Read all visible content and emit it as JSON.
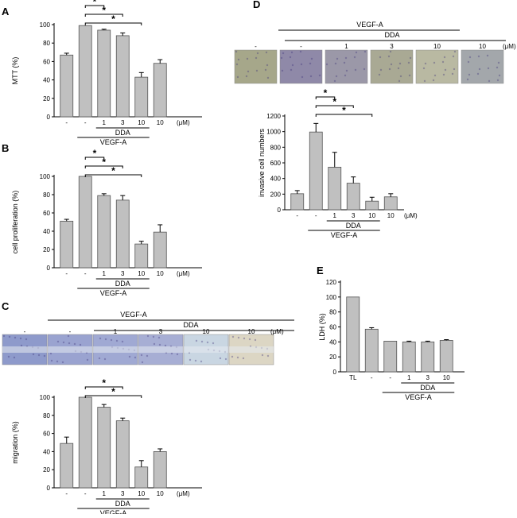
{
  "chart_data": [
    {
      "id": "A",
      "panel_label": "A",
      "type": "bar",
      "categories": [
        "-",
        "-",
        "1",
        "3",
        "10",
        "10"
      ],
      "unit": "(μM)",
      "values": [
        67,
        99,
        94,
        88,
        43,
        58
      ],
      "errors": [
        2,
        0,
        1,
        3,
        5,
        4
      ],
      "ylabel": "MTT (%)",
      "ylim": [
        0,
        100
      ],
      "yticks": [
        0,
        20,
        40,
        60,
        80,
        100
      ],
      "groups": [
        {
          "label": "DDA",
          "from": 2,
          "to": 4
        },
        {
          "label": "VEGF-A",
          "from": 1,
          "to": 4
        }
      ],
      "significance": [
        {
          "from": 1,
          "to": 2,
          "label": "*"
        },
        {
          "from": 1,
          "to": 3,
          "label": "*"
        },
        {
          "from": 1,
          "to": 4,
          "label": "*"
        }
      ]
    },
    {
      "id": "B",
      "panel_label": "B",
      "type": "bar",
      "categories": [
        "-",
        "-",
        "1",
        "3",
        "10",
        "10"
      ],
      "unit": "(μM)",
      "values": [
        51,
        100,
        79,
        74,
        26,
        39
      ],
      "errors": [
        2,
        0,
        2,
        5,
        3,
        8
      ],
      "ylabel": "cell proliferation (%)",
      "ylim": [
        0,
        100
      ],
      "yticks": [
        0,
        20,
        40,
        60,
        80,
        100
      ],
      "groups": [
        {
          "label": "DDA",
          "from": 2,
          "to": 4
        },
        {
          "label": "VEGF-A",
          "from": 1,
          "to": 4
        }
      ],
      "significance": [
        {
          "from": 1,
          "to": 2,
          "label": "*"
        },
        {
          "from": 1,
          "to": 3,
          "label": "*"
        },
        {
          "from": 1,
          "to": 4,
          "label": "*"
        }
      ]
    },
    {
      "id": "C",
      "panel_label": "C",
      "type": "bar",
      "categories": [
        "-",
        "-",
        "1",
        "3",
        "10",
        "10"
      ],
      "unit": "(μM)",
      "values": [
        49,
        100,
        89,
        74,
        23,
        40
      ],
      "errors": [
        7,
        0,
        3,
        3,
        7,
        3
      ],
      "ylabel": "migration (%)",
      "ylim": [
        0,
        100
      ],
      "yticks": [
        0,
        20,
        40,
        60,
        80,
        100
      ],
      "groups": [
        {
          "label": "DDA",
          "from": 2,
          "to": 4
        },
        {
          "label": "VEGF-A",
          "from": 1,
          "to": 4
        }
      ],
      "significance": [
        {
          "from": 1,
          "to": 3,
          "label": "*"
        },
        {
          "from": 1,
          "to": 4,
          "label": "*"
        }
      ]
    },
    {
      "id": "D",
      "panel_label": "D",
      "type": "bar",
      "categories": [
        "-",
        "-",
        "1",
        "3",
        "10",
        "10"
      ],
      "unit": "(μM)",
      "values": [
        205,
        995,
        545,
        340,
        110,
        165
      ],
      "errors": [
        40,
        110,
        190,
        80,
        50,
        40
      ],
      "ylabel": "invasive cell numbers",
      "ylim": [
        0,
        1200
      ],
      "yticks": [
        0,
        200,
        400,
        600,
        800,
        1000,
        1200
      ],
      "groups": [
        {
          "label": "DDA",
          "from": 2,
          "to": 4
        },
        {
          "label": "VEGF-A",
          "from": 1,
          "to": 4
        }
      ],
      "significance": [
        {
          "from": 1,
          "to": 2,
          "label": "*"
        },
        {
          "from": 1,
          "to": 3,
          "label": "*"
        },
        {
          "from": 1,
          "to": 4,
          "label": "*"
        }
      ]
    },
    {
      "id": "E",
      "panel_label": "E",
      "type": "bar",
      "categories": [
        "TL",
        "-",
        "-",
        "1",
        "3",
        "10"
      ],
      "values": [
        100,
        57,
        41,
        40,
        40,
        42
      ],
      "errors": [
        0,
        2,
        0,
        1,
        1,
        1
      ],
      "ylabel": "LDH (%)",
      "ylim": [
        0,
        120
      ],
      "yticks": [
        0,
        20,
        40,
        60,
        80,
        100,
        120
      ],
      "groups": [
        {
          "label": "DDA",
          "from": 3,
          "to": 5
        },
        {
          "label": "VEGF-A",
          "from": 2,
          "to": 5
        }
      ],
      "significance": []
    }
  ],
  "micrographs": {
    "C": {
      "header": "VEGF-A",
      "subheader": "DDA",
      "unit": "(μM)",
      "labels": [
        "-",
        "-",
        "1",
        "3",
        "10",
        "10"
      ],
      "colors": [
        "#8e9acb",
        "#9aa3d0",
        "#a0a9d3",
        "#a7aed4",
        "#c9d6e2",
        "#dcd6c4"
      ]
    },
    "D": {
      "header": "VEGF-A",
      "subheader": "DDA",
      "unit": "(μM)",
      "labels": [
        "-",
        "-",
        "1",
        "3",
        "10",
        "10"
      ],
      "colors": [
        "#a6a78a",
        "#8f89a8",
        "#9b98a8",
        "#a9a994",
        "#b9b9a2",
        "#a3a7ab"
      ]
    }
  }
}
